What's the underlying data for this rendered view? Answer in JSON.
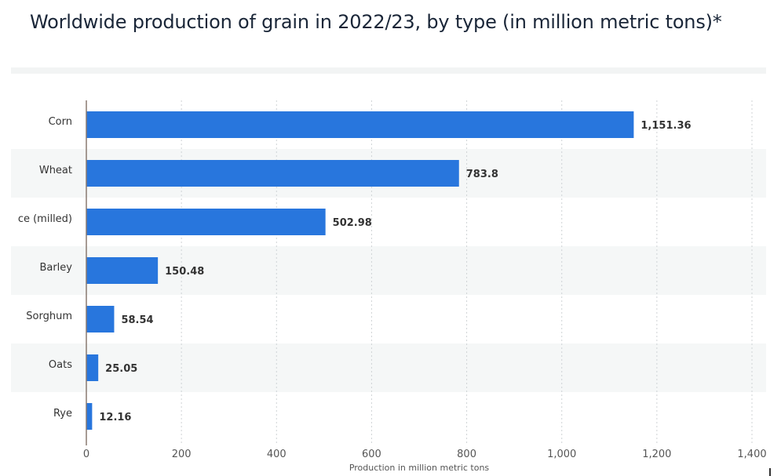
{
  "title": "Worldwide production of grain in 2022/23, by type (in million metric tons)*",
  "chart_data": {
    "type": "bar",
    "orientation": "horizontal",
    "categories": [
      "Corn",
      "Wheat",
      "ce (milled)",
      "Barley",
      "Sorghum",
      "Oats",
      "Rye"
    ],
    "values": [
      1151.36,
      783.8,
      502.98,
      150.48,
      58.54,
      25.05,
      12.16
    ],
    "value_labels": [
      "1,151.36",
      "783.8",
      "502.98",
      "150.48",
      "58.54",
      "25.05",
      "12.16"
    ],
    "xlabel": "Production in million metric tons",
    "ylabel": "",
    "xlim": [
      0,
      1400
    ],
    "ticks": [
      0,
      200,
      400,
      600,
      800,
      1000,
      1200,
      1400
    ],
    "tick_labels": [
      "0",
      "200",
      "400",
      "600",
      "800",
      "1,000",
      "1,200",
      "1,400"
    ],
    "grid": "vertical dotted",
    "bar_color": "#2876dd",
    "alternate_row_shading": "#f5f7f7"
  }
}
